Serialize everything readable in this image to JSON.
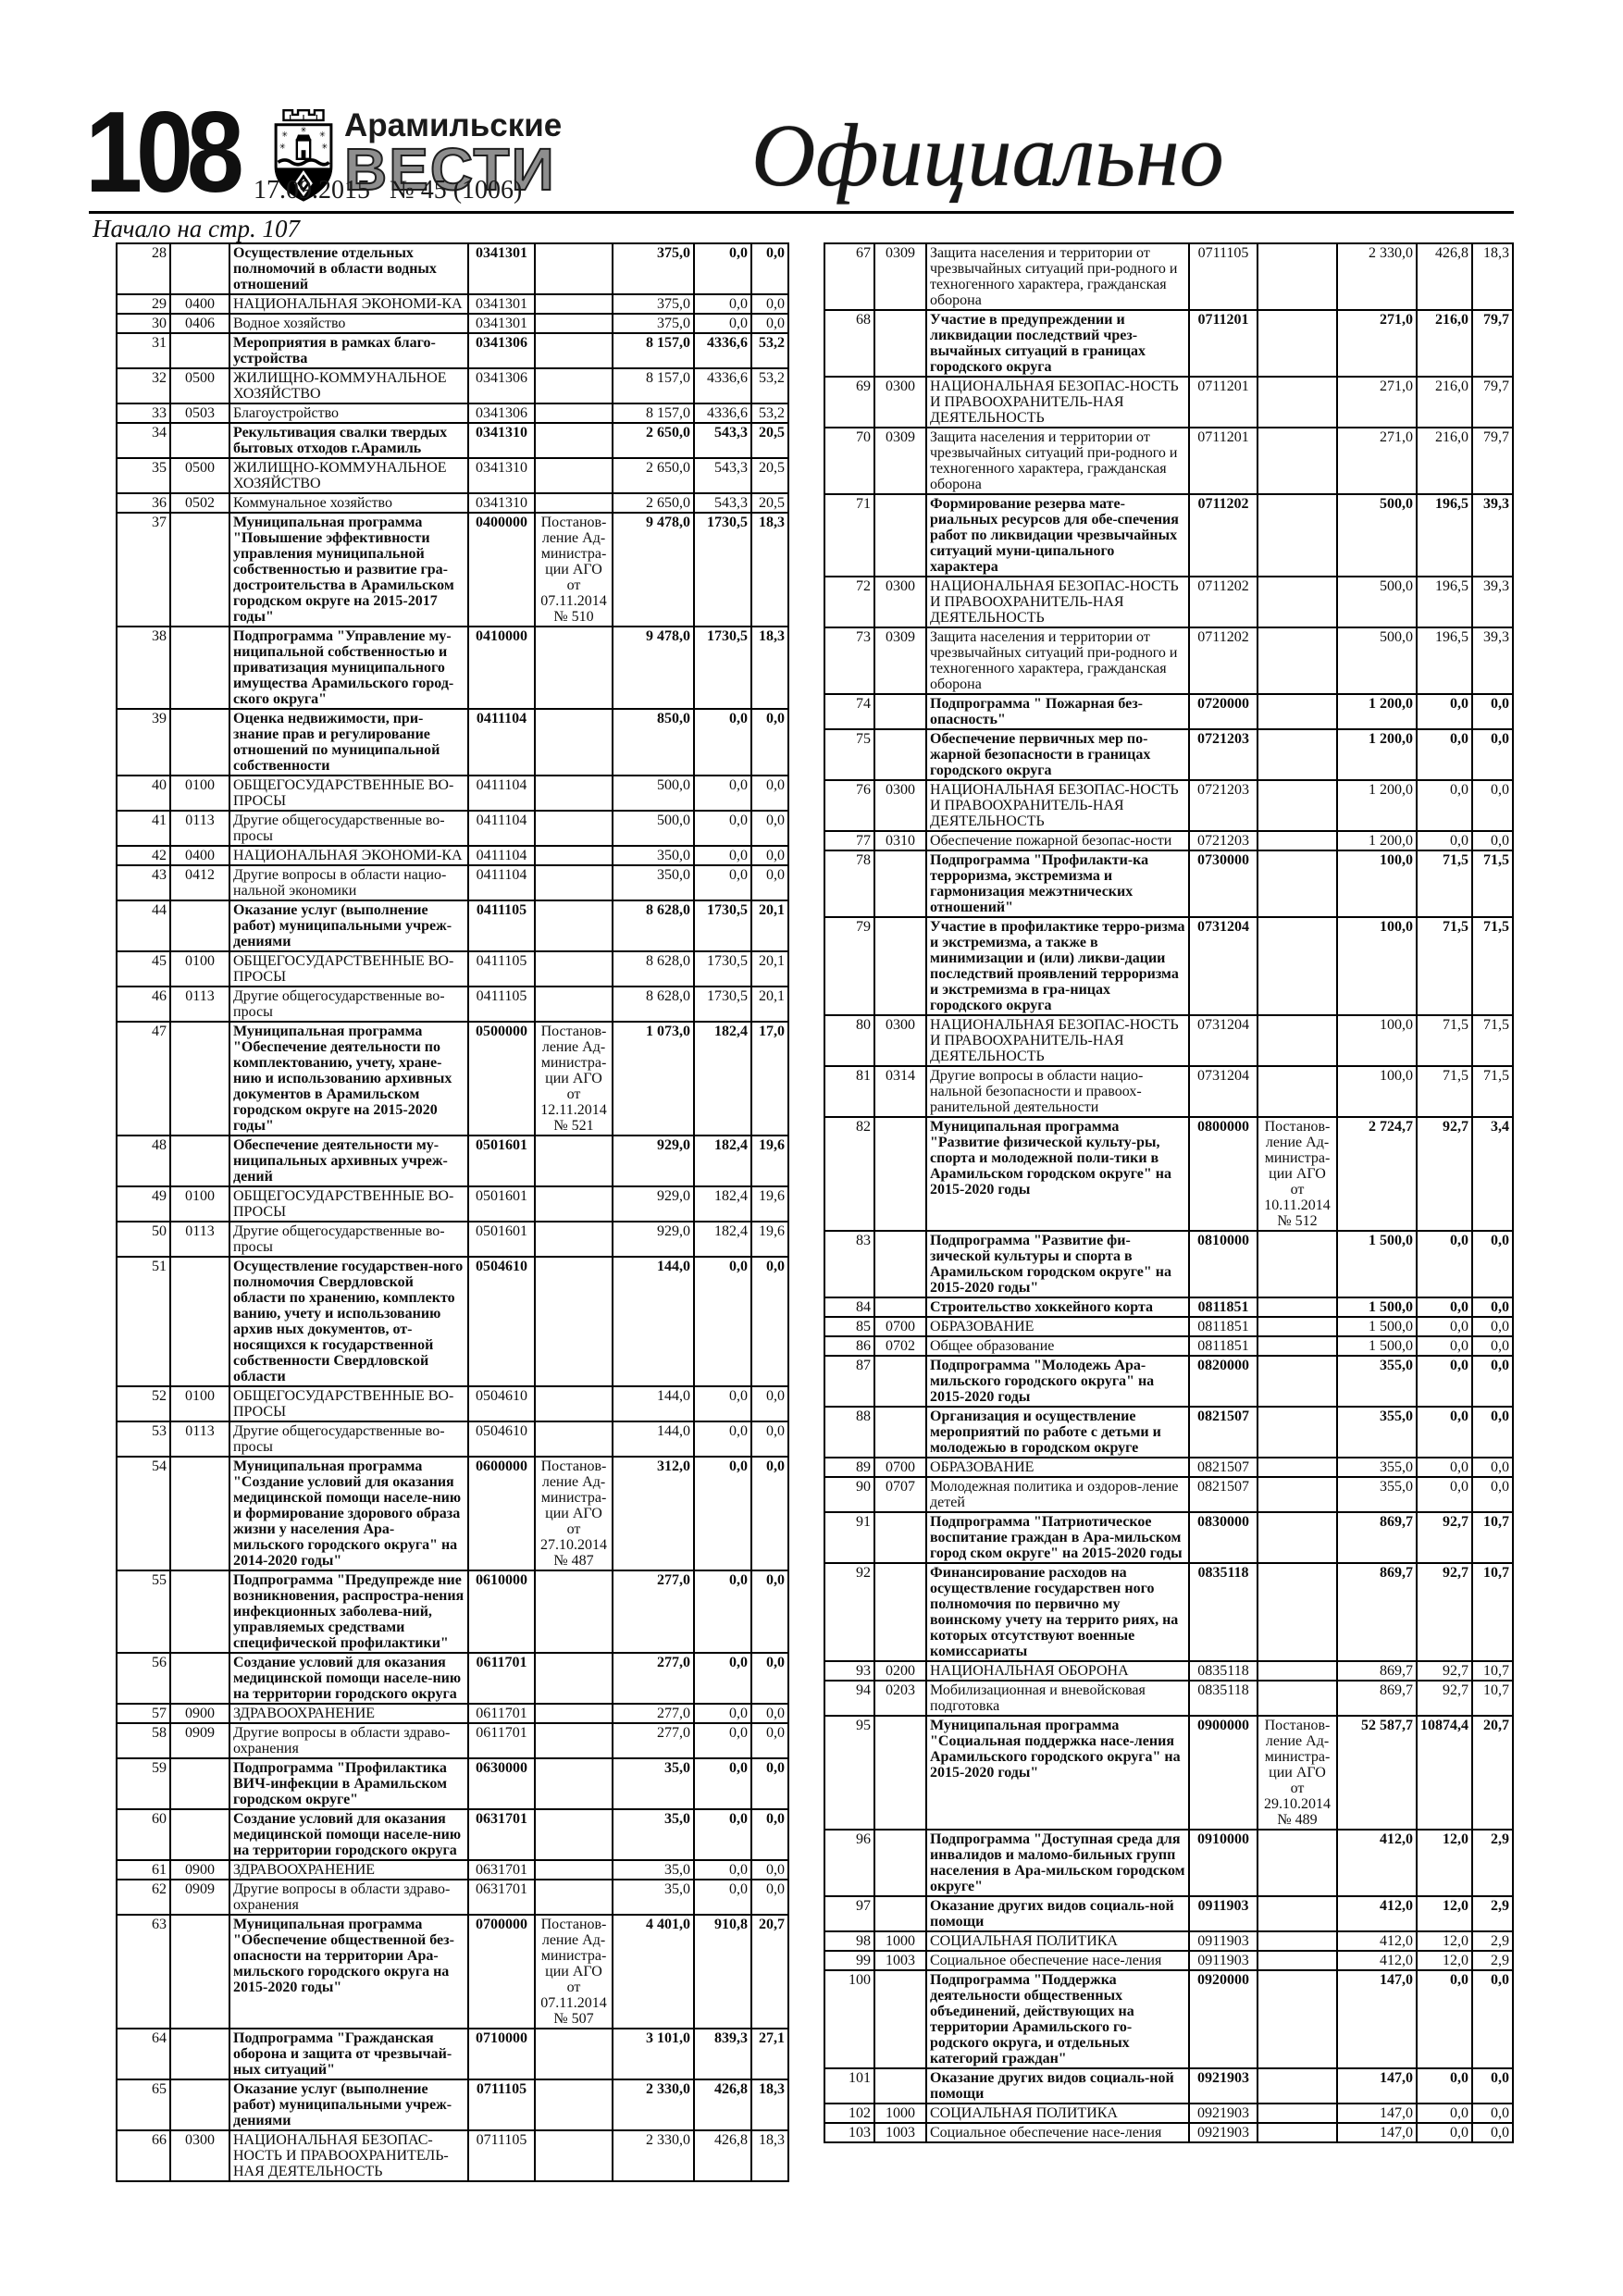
{
  "header": {
    "page_number": "108",
    "masthead_top": "Арамильские",
    "masthead_main": "ВЕСТИ",
    "issue_line": "17.09.2015   № 45 (1006)",
    "section_title": "Официально",
    "continuation_note": "Начало на стр. 107",
    "emblem_icon": "aramil-coat-of-arms",
    "colors": {
      "masthead_gray": "#8e8e8e",
      "ink": "#111111"
    }
  },
  "tables": {
    "row_fields": [
      "row_no",
      "section_code",
      "name",
      "target_code",
      "document",
      "plan",
      "fact",
      "percent"
    ],
    "left_rows": [
      [
        "28",
        "",
        "Осуществление отдельных полномочий в области водных отношений",
        "0341301",
        "",
        "375,0",
        "0,0",
        "0,0"
      ],
      [
        "29",
        "0400",
        "НАЦИОНАЛЬНАЯ ЭКОНОМИ-КА",
        "0341301",
        "",
        "375,0",
        "0,0",
        "0,0"
      ],
      [
        "30",
        "0406",
        "Водное хозяйство",
        "0341301",
        "",
        "375,0",
        "0,0",
        "0,0"
      ],
      [
        "31",
        "",
        "Мероприятия в рамках благо-устройства",
        "0341306",
        "",
        "8 157,0",
        "4336,6",
        "53,2"
      ],
      [
        "32",
        "0500",
        "ЖИЛИЩНО-КОММУНАЛЬНОЕ ХОЗЯЙСТВО",
        "0341306",
        "",
        "8 157,0",
        "4336,6",
        "53,2"
      ],
      [
        "33",
        "0503",
        "Благоустройство",
        "0341306",
        "",
        "8 157,0",
        "4336,6",
        "53,2"
      ],
      [
        "34",
        "",
        "Рекультивация свалки твердых бытовых отходов г.Арамиль",
        "0341310",
        "",
        "2 650,0",
        "543,3",
        "20,5"
      ],
      [
        "35",
        "0500",
        "ЖИЛИЩНО-КОММУНАЛЬНОЕ ХОЗЯЙСТВО",
        "0341310",
        "",
        "2 650,0",
        "543,3",
        "20,5"
      ],
      [
        "36",
        "0502",
        "Коммунальное хозяйство",
        "0341310",
        "",
        "2 650,0",
        "543,3",
        "20,5"
      ],
      [
        "37",
        "",
        "Муниципальная программа \"Повышение эффективности управления муниципальной собственностью и развитие гра-достроительства в Арамильском городском округе на 2015-2017 годы\"",
        "0400000",
        "Постанов-ление Ад-министра-ции АГО от 07.11.2014 № 510",
        "9 478,0",
        "1730,5",
        "18,3"
      ],
      [
        "38",
        "",
        "Подпрограмма \"Управление му-ниципальной собственностью и приватизация муниципального имущества Арамильского город-ского округа\"",
        "0410000",
        "",
        "9 478,0",
        "1730,5",
        "18,3"
      ],
      [
        "39",
        "",
        "Оценка недвижимости, при-знание прав и регулирование отношений по муниципальной собственности",
        "0411104",
        "",
        "850,0",
        "0,0",
        "0,0"
      ],
      [
        "40",
        "0100",
        "ОБЩЕГОСУДАРСТВЕННЫЕ ВО-ПРОСЫ",
        "0411104",
        "",
        "500,0",
        "0,0",
        "0,0"
      ],
      [
        "41",
        "0113",
        "Другие общегосударственные во-просы",
        "0411104",
        "",
        "500,0",
        "0,0",
        "0,0"
      ],
      [
        "42",
        "0400",
        "НАЦИОНАЛЬНАЯ ЭКОНОМИ-КА",
        "0411104",
        "",
        "350,0",
        "0,0",
        "0,0"
      ],
      [
        "43",
        "0412",
        "Другие вопросы в области нацио-нальной экономики",
        "0411104",
        "",
        "350,0",
        "0,0",
        "0,0"
      ],
      [
        "44",
        "",
        "Оказание услуг (выполнение работ) муниципальными учреж-дениями",
        "0411105",
        "",
        "8 628,0",
        "1730,5",
        "20,1"
      ],
      [
        "45",
        "0100",
        "ОБЩЕГОСУДАРСТВЕННЫЕ ВО-ПРОСЫ",
        "0411105",
        "",
        "8 628,0",
        "1730,5",
        "20,1"
      ],
      [
        "46",
        "0113",
        "Другие общегосударственные во-просы",
        "0411105",
        "",
        "8 628,0",
        "1730,5",
        "20,1"
      ],
      [
        "47",
        "",
        "Муниципальная программа \"Обеспечение деятельности по комплектованию, учету, хране-нию и использованию архивных документов в Арамильском городском округе на 2015-2020 годы\"",
        "0500000",
        "Постанов-ление Ад-министра-ции АГО от 12.11.2014 № 521",
        "1 073,0",
        "182,4",
        "17,0"
      ],
      [
        "48",
        "",
        "Обеспечение деятельности му-ниципальных архивных учреж-дений",
        "0501601",
        "",
        "929,0",
        "182,4",
        "19,6"
      ],
      [
        "49",
        "0100",
        "ОБЩЕГОСУДАРСТВЕННЫЕ ВО-ПРОСЫ",
        "0501601",
        "",
        "929,0",
        "182,4",
        "19,6"
      ],
      [
        "50",
        "0113",
        "Другие общегосударственные во-просы",
        "0501601",
        "",
        "929,0",
        "182,4",
        "19,6"
      ],
      [
        "51",
        "",
        "Осуществление государствен-ного полномочия Свердловской области по хранению, комплекто ванию, учету и использованию архив ных документов, от-носящихся к государственной собственности Свердловской области",
        "0504610",
        "",
        "144,0",
        "0,0",
        "0,0"
      ],
      [
        "52",
        "0100",
        "ОБЩЕГОСУДАРСТВЕННЫЕ ВО-ПРОСЫ",
        "0504610",
        "",
        "144,0",
        "0,0",
        "0,0"
      ],
      [
        "53",
        "0113",
        "Другие общегосударственные во-просы",
        "0504610",
        "",
        "144,0",
        "0,0",
        "0,0"
      ],
      [
        "54",
        "",
        "Муниципальная программа \"Создание условий для оказания медицинской помощи населе-нию и формирование здорового образа жизни у населения Ара-мильского городского округа\" на 2014-2020 годы\"",
        "0600000",
        "Постанов-ление Ад-министра-ции АГО от 27.10.2014 № 487",
        "312,0",
        "0,0",
        "0,0"
      ],
      [
        "55",
        "",
        "Подпрограмма \"Предупрежде ние возникновения, распростра-нения инфекционных заболева-ний, управляемых средствами специфической профилактики\"",
        "0610000",
        "",
        "277,0",
        "0,0",
        "0,0"
      ],
      [
        "56",
        "",
        "Создание условий для оказания медицинской помощи населе-нию на территории городского округа",
        "0611701",
        "",
        "277,0",
        "0,0",
        "0,0"
      ],
      [
        "57",
        "0900",
        "ЗДРАВООХРАНЕНИЕ",
        "0611701",
        "",
        "277,0",
        "0,0",
        "0,0"
      ],
      [
        "58",
        "0909",
        "Другие вопросы в области здраво-охранения",
        "0611701",
        "",
        "277,0",
        "0,0",
        "0,0"
      ],
      [
        "59",
        "",
        "Подпрограмма \"Профилактика ВИЧ-инфекции в Арамильском городском округе\"",
        "0630000",
        "",
        "35,0",
        "0,0",
        "0,0"
      ],
      [
        "60",
        "",
        "Создание условий для оказания медицинской помощи населе-нию на территории городского округа",
        "0631701",
        "",
        "35,0",
        "0,0",
        "0,0"
      ],
      [
        "61",
        "0900",
        "ЗДРАВООХРАНЕНИЕ",
        "0631701",
        "",
        "35,0",
        "0,0",
        "0,0"
      ],
      [
        "62",
        "0909",
        "Другие вопросы в области здраво-охранения",
        "0631701",
        "",
        "35,0",
        "0,0",
        "0,0"
      ],
      [
        "63",
        "",
        "Муниципальная программа \"Обеспечение общественной без-опасности на территории Ара-мильского городского округа на 2015-2020 годы\"",
        "0700000",
        "Постанов-ление Ад-министра-ции АГО от 07.11.2014 № 507",
        "4 401,0",
        "910,8",
        "20,7"
      ],
      [
        "64",
        "",
        "Подпрограмма \"Гражданская оборона и защита от чрезвычай-ных ситуаций\"",
        "0710000",
        "",
        "3 101,0",
        "839,3",
        "27,1"
      ],
      [
        "65",
        "",
        "Оказание услуг (выполнение работ) муниципальными учреж-дениями",
        "0711105",
        "",
        "2 330,0",
        "426,8",
        "18,3"
      ],
      [
        "66",
        "0300",
        "НАЦИОНАЛЬНАЯ БЕЗОПАС-НОСТЬ И ПРАВООХРАНИТЕЛЬ-НАЯ ДЕЯТЕЛЬНОСТЬ",
        "0711105",
        "",
        "2 330,0",
        "426,8",
        "18,3"
      ]
    ],
    "right_rows": [
      [
        "67",
        "0309",
        "Защита населения и территории от чрезвычайных ситуаций при-родного и техногенного характера, гражданская оборона",
        "0711105",
        "",
        "2 330,0",
        "426,8",
        "18,3"
      ],
      [
        "68",
        "",
        "Участие в предупреждении и ликвидации последствий чрез-вычайных ситуаций в границах городского округа",
        "0711201",
        "",
        "271,0",
        "216,0",
        "79,7"
      ],
      [
        "69",
        "0300",
        "НАЦИОНАЛЬНАЯ БЕЗОПАС-НОСТЬ И ПРАВООХРАНИТЕЛЬ-НАЯ ДЕЯТЕЛЬНОСТЬ",
        "0711201",
        "",
        "271,0",
        "216,0",
        "79,7"
      ],
      [
        "70",
        "0309",
        "Защита населения и территории от чрезвычайных ситуаций при-родного и техногенного характера, гражданская оборона",
        "0711201",
        "",
        "271,0",
        "216,0",
        "79,7"
      ],
      [
        "71",
        "",
        "Формирование резерва мате-риальных ресурсов для обе-спечения работ по ликвидации чрезвычайных ситуаций муни-ципального характера",
        "0711202",
        "",
        "500,0",
        "196,5",
        "39,3"
      ],
      [
        "72",
        "0300",
        "НАЦИОНАЛЬНАЯ БЕЗОПАС-НОСТЬ И ПРАВООХРАНИТЕЛЬ-НАЯ ДЕЯТЕЛЬНОСТЬ",
        "0711202",
        "",
        "500,0",
        "196,5",
        "39,3"
      ],
      [
        "73",
        "0309",
        "Защита населения и территории от чрезвычайных ситуаций при-родного и техногенного характера, гражданская оборона",
        "0711202",
        "",
        "500,0",
        "196,5",
        "39,3"
      ],
      [
        "74",
        "",
        "Подпрограмма \" Пожарная без-опасность\"",
        "0720000",
        "",
        "1 200,0",
        "0,0",
        "0,0"
      ],
      [
        "75",
        "",
        "Обеспечение первичных мер по-жарной безопасности в границах городского округа",
        "0721203",
        "",
        "1 200,0",
        "0,0",
        "0,0"
      ],
      [
        "76",
        "0300",
        "НАЦИОНАЛЬНАЯ БЕЗОПАС-НОСТЬ И ПРАВООХРАНИТЕЛЬ-НАЯ ДЕЯТЕЛЬНОСТЬ",
        "0721203",
        "",
        "1 200,0",
        "0,0",
        "0,0"
      ],
      [
        "77",
        "0310",
        "Обеспечение пожарной безопас-ности",
        "0721203",
        "",
        "1 200,0",
        "0,0",
        "0,0"
      ],
      [
        "78",
        "",
        "Подпрограмма \"Профилакти-ка терроризма, экстремизма и гармонизация межэтнических отношений\"",
        "0730000",
        "",
        "100,0",
        "71,5",
        "71,5"
      ],
      [
        "79",
        "",
        "Участие в профилактике терро-ризма и экстремизма, а также в  минимизации и (или) ликви-дации последствий проявлений терроризма и экстремизма в гра-ницах городского округа",
        "0731204",
        "",
        "100,0",
        "71,5",
        "71,5"
      ],
      [
        "80",
        "0300",
        "НАЦИОНАЛЬНАЯ БЕЗОПАС-НОСТЬ И ПРАВООХРАНИТЕЛЬ-НАЯ ДЕЯТЕЛЬНОСТЬ",
        "0731204",
        "",
        "100,0",
        "71,5",
        "71,5"
      ],
      [
        "81",
        "0314",
        "Другие вопросы в области нацио-нальной безопасности и правоох-ранительной деятельности",
        "0731204",
        "",
        "100,0",
        "71,5",
        "71,5"
      ],
      [
        "82",
        "",
        "Муниципальная программа \"Развитие физической культу-ры, спорта и молодежной поли-тики в Арамильском городском округе\" на 2015-2020 годы",
        "0800000",
        "Постанов-ление Ад-министра-ции АГО от 10.11.2014 № 512",
        "2 724,7",
        "92,7",
        "3,4"
      ],
      [
        "83",
        "",
        "Подпрограмма \"Развитие фи-зической культуры и спорта в Арамильском городском округе\" на 2015-2020 годы\"",
        "0810000",
        "",
        "1 500,0",
        "0,0",
        "0,0"
      ],
      [
        "84",
        "",
        "Строительство хоккейного корта",
        "0811851",
        "",
        "1 500,0",
        "0,0",
        "0,0"
      ],
      [
        "85",
        "0700",
        "ОБРАЗОВАНИЕ",
        "0811851",
        "",
        "1 500,0",
        "0,0",
        "0,0"
      ],
      [
        "86",
        "0702",
        "Общее образование",
        "0811851",
        "",
        "1 500,0",
        "0,0",
        "0,0"
      ],
      [
        "87",
        "",
        "Подпрограмма \"Молодежь Ара-мильского городского округа\" на 2015-2020 годы",
        "0820000",
        "",
        "355,0",
        "0,0",
        "0,0"
      ],
      [
        "88",
        "",
        "Организация и осуществление мероприятий по работе с детьми и молодежью в городском округе",
        "0821507",
        "",
        "355,0",
        "0,0",
        "0,0"
      ],
      [
        "89",
        "0700",
        "ОБРАЗОВАНИЕ",
        "0821507",
        "",
        "355,0",
        "0,0",
        "0,0"
      ],
      [
        "90",
        "0707",
        "Молодежная политика и оздоров-ление детей",
        "0821507",
        "",
        "355,0",
        "0,0",
        "0,0"
      ],
      [
        "91",
        "",
        "Подпрограмма \"Патриотическое воспитание граждан в Ара-мильском город ском округе\" на 2015-2020 годы",
        "0830000",
        "",
        "869,7",
        "92,7",
        "10,7"
      ],
      [
        "92",
        "",
        "Финансирование расходов на осуществление государствен ного полномочия по первично му воинскому учету на террито риях, на которых отсутствуют военные комиссариаты",
        "0835118",
        "",
        "869,7",
        "92,7",
        "10,7"
      ],
      [
        "93",
        "0200",
        "НАЦИОНАЛЬНАЯ ОБОРОНА",
        "0835118",
        "",
        "869,7",
        "92,7",
        "10,7"
      ],
      [
        "94",
        "0203",
        "Мобилизационная и вневойсковая подготовка",
        "0835118",
        "",
        "869,7",
        "92,7",
        "10,7"
      ],
      [
        "95",
        "",
        "Муниципальная программа \"Социальная поддержка насе-ления Арамильского городского округа\" на 2015-2020 годы\"",
        "0900000",
        "Постанов-ление Ад-министра-ции АГО от 29.10.2014 № 489",
        "52 587,7",
        "10874,4",
        "20,7"
      ],
      [
        "96",
        "",
        "Подпрограмма \"Доступная среда для инвалидов и маломо-бильных групп населения в Ара-мильском городском округе\"",
        "0910000",
        "",
        "412,0",
        "12,0",
        "2,9"
      ],
      [
        "97",
        "",
        "Оказание других видов социаль-ной помощи",
        "0911903",
        "",
        "412,0",
        "12,0",
        "2,9"
      ],
      [
        "98",
        "1000",
        "СОЦИАЛЬНАЯ ПОЛИТИКА",
        "0911903",
        "",
        "412,0",
        "12,0",
        "2,9"
      ],
      [
        "99",
        "1003",
        "Социальное обеспечение насе-ления",
        "0911903",
        "",
        "412,0",
        "12,0",
        "2,9"
      ],
      [
        "100",
        "",
        "Подпрограмма \"Поддержка деятельности общественных объединений, действующих на территории Арамильского го-родского округа, и отдельных категорий граждан\"",
        "0920000",
        "",
        "147,0",
        "0,0",
        "0,0"
      ],
      [
        "101",
        "",
        "Оказание других видов социаль-ной помощи",
        "0921903",
        "",
        "147,0",
        "0,0",
        "0,0"
      ],
      [
        "102",
        "1000",
        "СОЦИАЛЬНАЯ ПОЛИТИКА",
        "0921903",
        "",
        "147,0",
        "0,0",
        "0,0"
      ],
      [
        "103",
        "1003",
        "Социальное обеспечение насе-ления",
        "0921903",
        "",
        "147,0",
        "0,0",
        "0,0"
      ]
    ]
  }
}
